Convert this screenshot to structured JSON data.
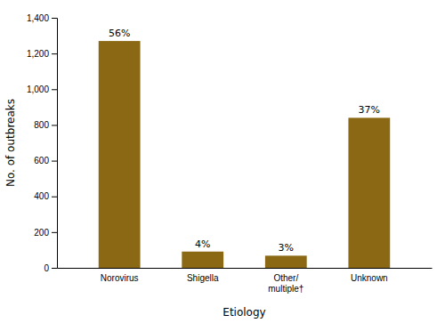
{
  "chart_data": {
    "type": "bar",
    "xlabel": "Etiology",
    "ylabel": "No. of outbreaks",
    "categories": [
      "Norovirus",
      "Shigella",
      "Other/\nmultiple†",
      "Unknown"
    ],
    "values": [
      1270,
      91,
      68,
      840
    ],
    "value_labels": [
      "56%",
      "4%",
      "3%",
      "37%"
    ],
    "data_labels": true,
    "color": "#8B6914",
    "ylim": [
      0,
      1400
    ],
    "yticks": [
      0,
      200,
      400,
      600,
      800,
      {
        "value": 1000,
        "label": "1,000"
      },
      {
        "value": 1200,
        "label": "1,200"
      },
      {
        "value": 1400,
        "label": "1,400"
      }
    ],
    "grid": false
  }
}
